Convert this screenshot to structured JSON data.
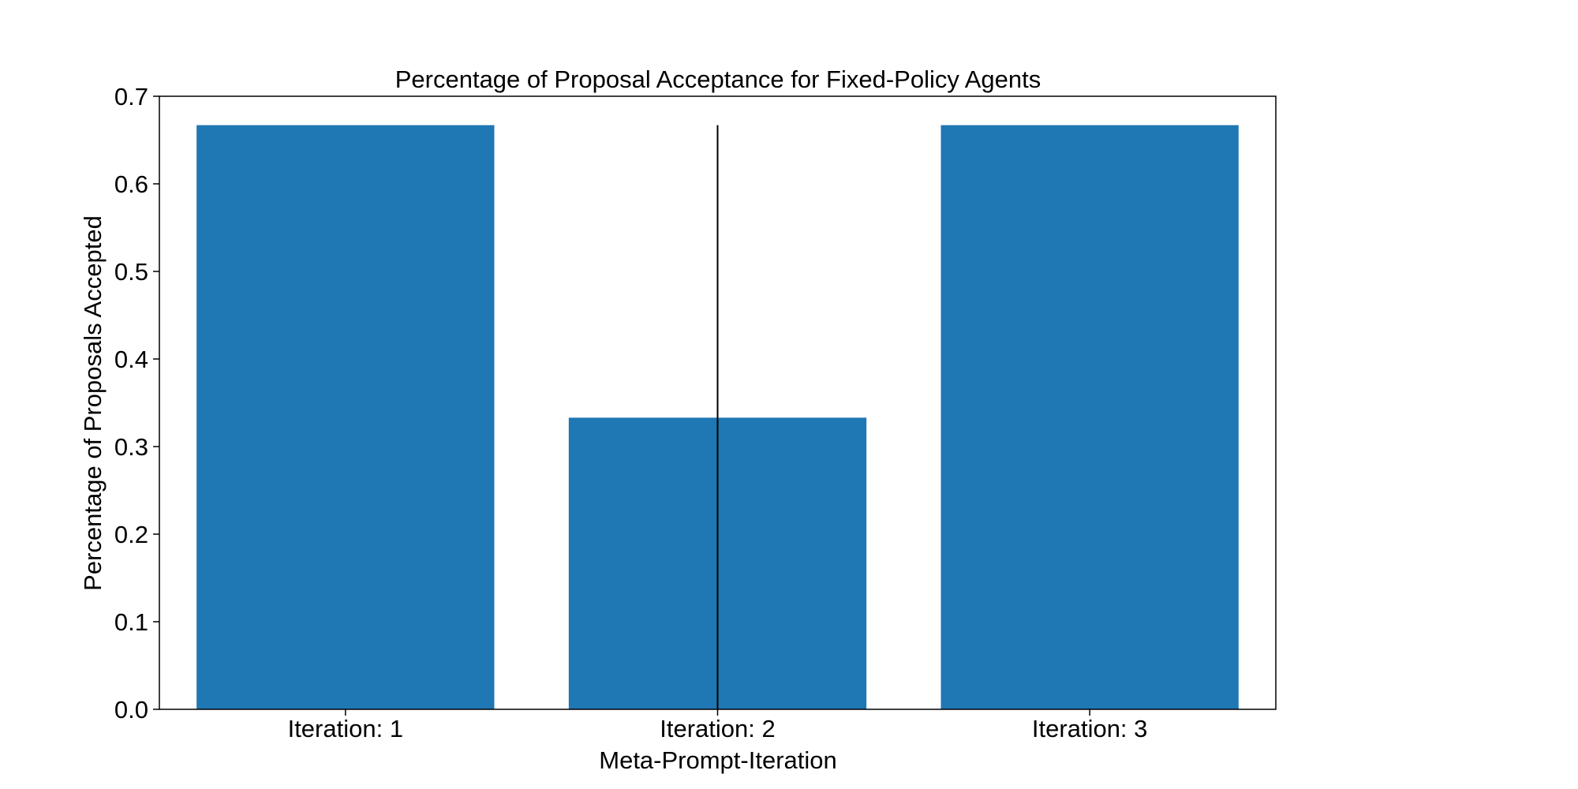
{
  "chart_data": {
    "type": "bar",
    "title": "Percentage of Proposal Acceptance for Fixed-Policy Agents",
    "xlabel": "Meta-Prompt-Iteration",
    "ylabel": "Percentage of Proposals Accepted",
    "categories": [
      "Iteration: 1",
      "Iteration: 2",
      "Iteration: 3"
    ],
    "values": [
      0.667,
      0.333,
      0.667
    ],
    "error_bars": [
      {
        "category": "Iteration: 2",
        "low": 0.0,
        "high": 0.667
      }
    ],
    "ylim": [
      0,
      0.7
    ],
    "yticks": [
      "0.0",
      "0.1",
      "0.2",
      "0.3",
      "0.4",
      "0.5",
      "0.6",
      "0.7"
    ],
    "bar_color": "#1f77b4",
    "grid": false,
    "legend": "none"
  }
}
